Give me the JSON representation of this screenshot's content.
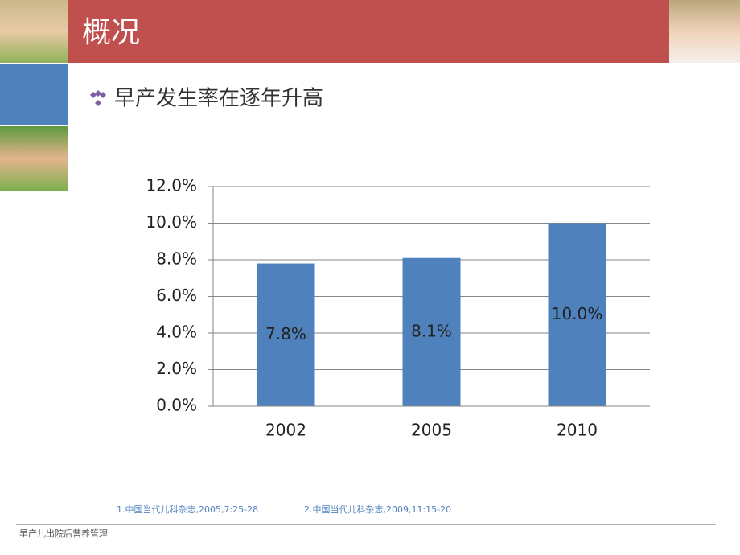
{
  "header": {
    "title": "概况"
  },
  "bullet": "早产发生率在逐年升高",
  "references": [
    "1.中国当代儿科杂志,2005,7:25-28",
    "2.中国当代儿科杂志,2009,11:15-20"
  ],
  "footer": "早产儿出院后营养管理",
  "chart_data": {
    "type": "bar",
    "categories": [
      "2002",
      "2005",
      "2010"
    ],
    "values": [
      7.8,
      8.1,
      10.0
    ],
    "value_labels": [
      "7.8%",
      "8.1%",
      "10.0%"
    ],
    "color": "#4f81bd",
    "ylim": [
      0,
      12
    ],
    "yticks": [
      {
        "value": 0,
        "label": "0.0%"
      },
      {
        "value": 2,
        "label": "2.0%"
      },
      {
        "value": 4,
        "label": "4.0%"
      },
      {
        "value": 6,
        "label": "6.0%"
      },
      {
        "value": 8,
        "label": "8.0%"
      },
      {
        "value": 10,
        "label": "10.0%"
      },
      {
        "value": 12,
        "label": "12.0%"
      }
    ],
    "grid": true
  }
}
